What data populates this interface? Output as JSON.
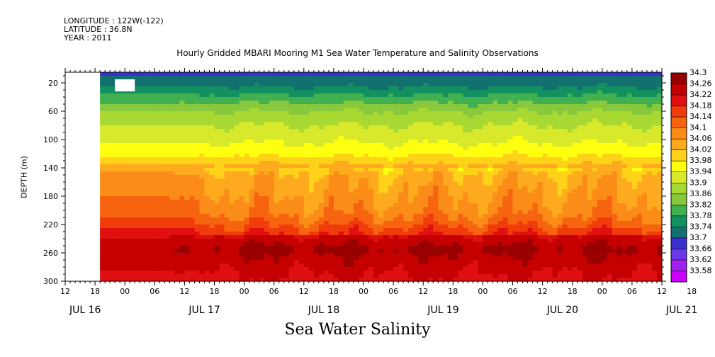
{
  "header": {
    "longitude": "LONGITUDE : 122W(-122)",
    "latitude": "LATITUDE : 36.8N",
    "year": "YEAR : 2011",
    "title": "Hourly Gridded MBARI Mooring M1 Sea Water Temperature and Salinity Observations"
  },
  "bottom_title": "Sea Water Salinity",
  "chart_data": {
    "type": "heatmap",
    "title": "Hourly Gridded MBARI Mooring M1 Sea Water Temperature and Salinity Observations",
    "variable": "Sea Water Salinity",
    "ylabel": "DEPTH (m)",
    "xlabel": "",
    "x_range_hours": [
      12,
      132
    ],
    "x_start_label": "JUL 16 12:00",
    "ylim": [
      300,
      5
    ],
    "y_ticks": [
      20,
      60,
      100,
      140,
      180,
      220,
      260,
      300
    ],
    "hour_ticks": [
      "12",
      "18",
      "00",
      "06",
      "12",
      "18",
      "00",
      "06",
      "12",
      "18",
      "00",
      "06",
      "12",
      "18",
      "00",
      "06",
      "12",
      "18",
      "00",
      "06",
      "12",
      "18"
    ],
    "day_labels": [
      "JUL 16",
      "JUL 17",
      "JUL 18",
      "JUL 19",
      "JUL 20",
      "JUL 21"
    ],
    "data_start_hour": 19,
    "missing_box": {
      "x": [
        22,
        26
      ],
      "depth": [
        5,
        32
      ]
    },
    "colorbar": {
      "levels": [
        "34.3",
        "34.26",
        "34.22",
        "34.18",
        "34.14",
        "34.1",
        "34.06",
        "34.02",
        "33.98",
        "33.94",
        "33.9",
        "33.86",
        "33.82",
        "33.78",
        "33.74",
        "33.7",
        "33.66",
        "33.62",
        "33.58"
      ],
      "colors": [
        "#990000",
        "#c40000",
        "#e01010",
        "#f03b0a",
        "#f76410",
        "#fb8c18",
        "#fdaa1e",
        "#ffd21a",
        "#ffff10",
        "#d8e82a",
        "#a8d832",
        "#88c83c",
        "#40b050",
        "#129060",
        "#12706e",
        "#3a30d0",
        "#6a3ae8",
        "#a020f0",
        "#cc00ff"
      ]
    },
    "depth_profile": [
      {
        "depth": 5,
        "value": 33.69
      },
      {
        "depth": 20,
        "value": 33.72
      },
      {
        "depth": 40,
        "value": 33.79
      },
      {
        "depth": 60,
        "value": 33.86
      },
      {
        "depth": 80,
        "value": 33.9
      },
      {
        "depth": 100,
        "value": 33.93
      },
      {
        "depth": 120,
        "value": 33.97
      },
      {
        "depth": 135,
        "value": 34.02
      },
      {
        "depth": 150,
        "value": 34.07
      },
      {
        "depth": 180,
        "value": 34.1
      },
      {
        "depth": 200,
        "value": 34.12
      },
      {
        "depth": 215,
        "value": 34.15
      },
      {
        "depth": 230,
        "value": 34.2
      },
      {
        "depth": 255,
        "value": 34.26
      },
      {
        "depth": 275,
        "value": 34.23
      },
      {
        "depth": 300,
        "value": 34.2
      }
    ]
  }
}
